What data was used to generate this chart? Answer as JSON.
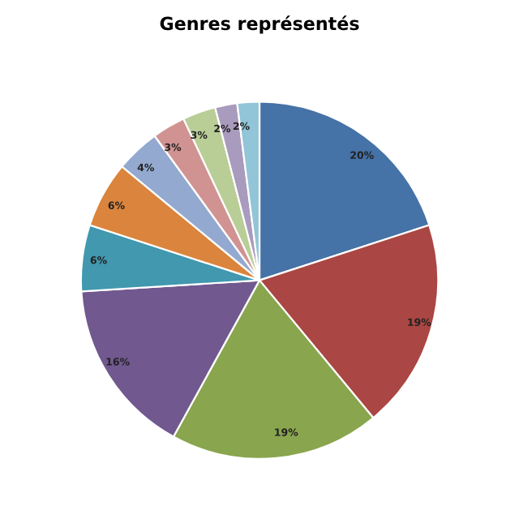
{
  "chart_data": {
    "type": "pie",
    "title": "Genres représentés",
    "categories": [
      null,
      null,
      null,
      null,
      null,
      null,
      null,
      null,
      null,
      null,
      null
    ],
    "values": [
      20,
      19,
      19,
      16,
      6,
      6,
      4,
      3,
      3,
      2,
      2
    ],
    "colors": [
      "#4572a7",
      "#aa4643",
      "#89a54e",
      "#71588f",
      "#4198af",
      "#db843d",
      "#93a9cf",
      "#d19392",
      "#b9cd96",
      "#a99bbd",
      "#92c5d7"
    ],
    "value_labels": [
      "20%",
      "19%",
      "19%",
      "16%",
      "6%",
      "6%",
      "4%",
      "3%",
      "3%",
      "2%",
      "2%"
    ]
  }
}
